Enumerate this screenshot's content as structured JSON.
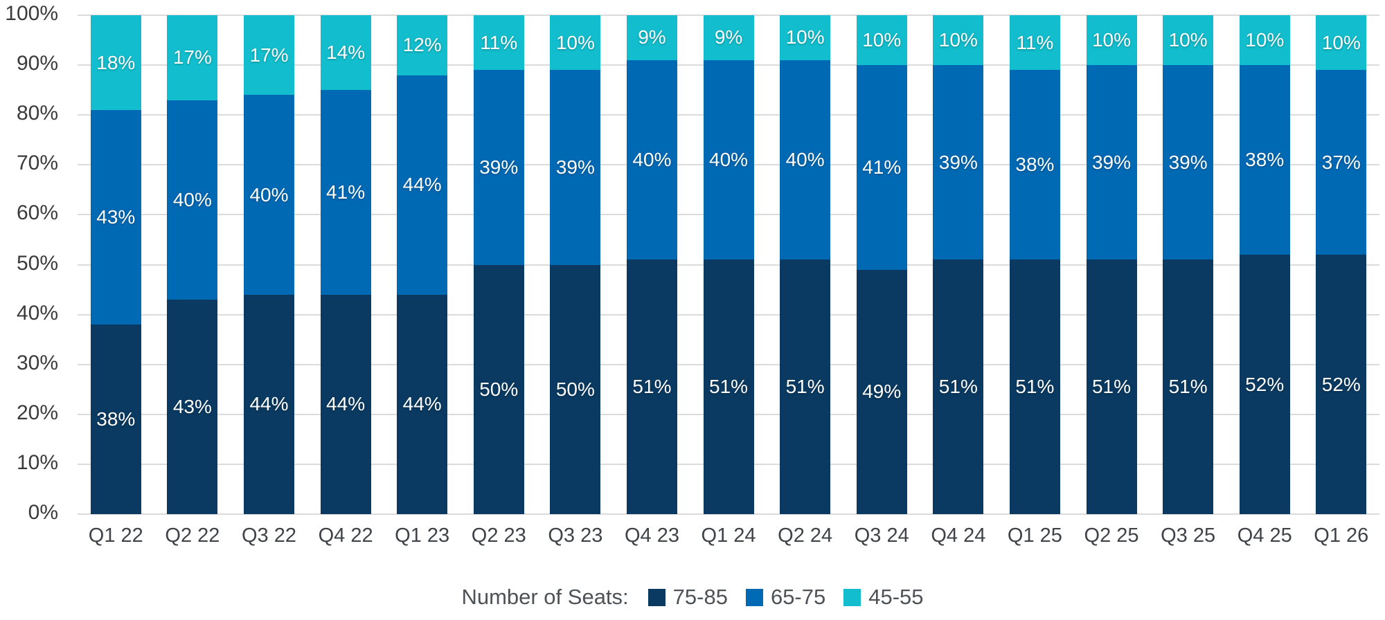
{
  "chart_data": {
    "type": "bar",
    "subtype": "stacked-100-percent-column",
    "title": "",
    "xlabel": "",
    "ylabel": "",
    "ylim": [
      0,
      100
    ],
    "grid": true,
    "y_ticks": [
      "0%",
      "10%",
      "20%",
      "30%",
      "40%",
      "50%",
      "60%",
      "70%",
      "80%",
      "90%",
      "100%"
    ],
    "categories": [
      "Q1 22",
      "Q2 22",
      "Q3 22",
      "Q4 22",
      "Q1 23",
      "Q2 23",
      "Q3 23",
      "Q4 23",
      "Q1 24",
      "Q2 24",
      "Q3 24",
      "Q4 24",
      "Q1 25",
      "Q2 25",
      "Q3 25",
      "Q4 25",
      "Q1 26"
    ],
    "series": [
      {
        "name": "75-85",
        "color": "#0a3a61",
        "values": [
          38,
          43,
          44,
          44,
          44,
          50,
          50,
          51,
          51,
          51,
          49,
          51,
          51,
          51,
          51,
          52,
          52
        ]
      },
      {
        "name": "65-75",
        "color": "#0069b4",
        "values": [
          43,
          40,
          40,
          41,
          44,
          39,
          39,
          40,
          40,
          40,
          41,
          39,
          38,
          39,
          39,
          38,
          37
        ]
      },
      {
        "name": "45-55",
        "color": "#12becd",
        "values": [
          18,
          17,
          17,
          14,
          12,
          11,
          10,
          9,
          9,
          10,
          10,
          10,
          11,
          10,
          10,
          10,
          10
        ]
      }
    ],
    "value_suffix": "%",
    "legend": {
      "title": "Number of Seats:",
      "position": "bottom"
    },
    "colors": {
      "background": "#ffffff",
      "gridline": "#dbdbdb",
      "axis_text": "#3b3b3b",
      "xaxis_text": "#3f4347",
      "legend_text": "#4d5257",
      "bar_label_text": "#ffffff"
    }
  }
}
